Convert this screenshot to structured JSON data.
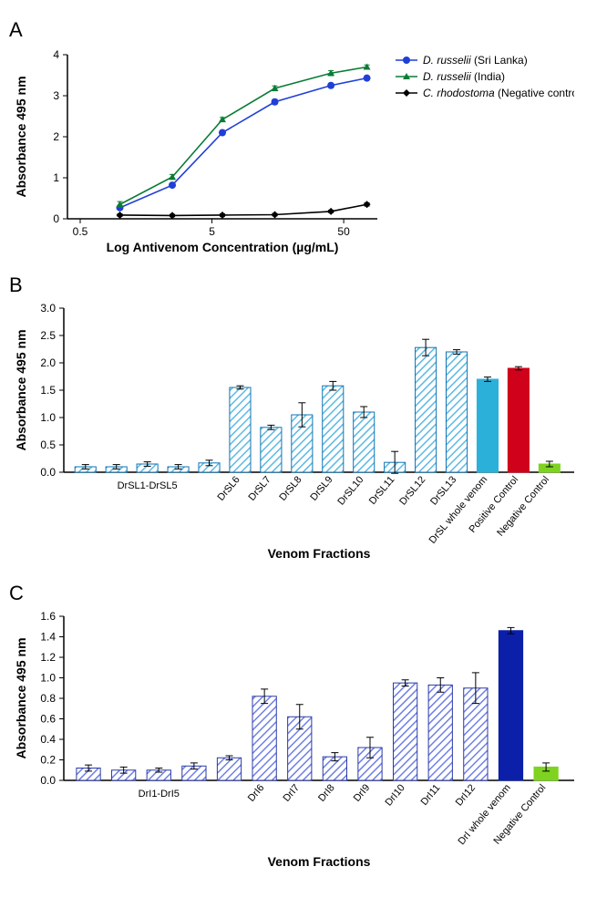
{
  "panelA": {
    "label": "A",
    "type": "line",
    "xlabel": "Log Antivenom Concentration (µg/mL)",
    "ylabel": "Absorbance 495 nm",
    "x_ticks": [
      0.5,
      5,
      50
    ],
    "x_tick_labels": [
      "0.5",
      "5",
      "50"
    ],
    "y_ticks": [
      0,
      1,
      2,
      3,
      4
    ],
    "xlim": [
      0.4,
      90
    ],
    "ylim": [
      0,
      4
    ],
    "log_x": true,
    "background_color": "#ffffff",
    "axis_color": "#000000",
    "line_width": 1.6,
    "marker_size": 4,
    "series": [
      {
        "name": "D. russelii (Sri Lanka)",
        "name_italic": "D. russelii",
        "name_paren": "(Sri Lanka)",
        "color": "#1f3fd6",
        "marker": "circle",
        "x": [
          1,
          2.5,
          6,
          15,
          40,
          75
        ],
        "y": [
          0.27,
          0.82,
          2.1,
          2.85,
          3.25,
          3.43
        ],
        "err": [
          0.05,
          0.05,
          0.05,
          0.06,
          0.05,
          0.05
        ]
      },
      {
        "name": "D. russelii (India)",
        "name_italic": "D. russelii",
        "name_paren": "(India)",
        "color": "#0a7c36",
        "marker": "triangle",
        "x": [
          1,
          2.5,
          6,
          15,
          40,
          75
        ],
        "y": [
          0.35,
          1.02,
          2.42,
          3.18,
          3.55,
          3.7
        ],
        "err": [
          0.07,
          0.06,
          0.05,
          0.06,
          0.06,
          0.05
        ]
      },
      {
        "name": "C. rhodostoma (Negative control)",
        "name_italic": "C. rhodostoma",
        "name_paren": "(Negative control)",
        "color": "#000000",
        "marker": "diamond",
        "x": [
          1,
          2.5,
          6,
          15,
          40,
          75
        ],
        "y": [
          0.09,
          0.08,
          0.09,
          0.1,
          0.18,
          0.35
        ],
        "err": [
          0.03,
          0.03,
          0.03,
          0.03,
          0.03,
          0.04
        ]
      }
    ],
    "tick_fontsize": 12,
    "label_fontsize": 14
  },
  "panelB": {
    "label": "B",
    "type": "bar",
    "xlabel": "Venom Fractions",
    "ylabel": "Absorbance 495 nm",
    "ylim": [
      0,
      3.0
    ],
    "y_ticks": [
      0.0,
      0.5,
      1.0,
      1.5,
      2.0,
      2.5,
      3.0
    ],
    "group_label": "DrSL1-DrSL5",
    "group_count": 5,
    "group_values": [
      0.1,
      0.1,
      0.15,
      0.1,
      0.17
    ],
    "group_err": [
      0.04,
      0.04,
      0.04,
      0.04,
      0.05
    ],
    "hatched_color": "#5cb9e3",
    "hatched_stroke": "#0f74b3",
    "bars": [
      {
        "label": "DrSL6",
        "value": 1.55,
        "err": 0.03,
        "fill": "hatch"
      },
      {
        "label": "DrSL7",
        "value": 0.82,
        "err": 0.04,
        "fill": "hatch"
      },
      {
        "label": "DrSL8",
        "value": 1.05,
        "err": 0.22,
        "fill": "hatch"
      },
      {
        "label": "DrSL9",
        "value": 1.58,
        "err": 0.08,
        "fill": "hatch"
      },
      {
        "label": "DrSL10",
        "value": 1.1,
        "err": 0.1,
        "fill": "hatch"
      },
      {
        "label": "DrSL11",
        "value": 0.18,
        "err": 0.2,
        "fill": "hatch"
      },
      {
        "label": "DrSL12",
        "value": 2.28,
        "err": 0.15,
        "fill": "hatch"
      },
      {
        "label": "DrSL13",
        "value": 2.2,
        "err": 0.04,
        "fill": "hatch"
      },
      {
        "label": "DrSL whole venom",
        "value": 1.7,
        "err": 0.04,
        "fill": "solid",
        "color": "#2bb0d9"
      },
      {
        "label": "Positive Control",
        "value": 1.9,
        "err": 0.03,
        "fill": "solid",
        "color": "#d0021b"
      },
      {
        "label": "Negative Control",
        "value": 0.15,
        "err": 0.05,
        "fill": "solid",
        "color": "#7ed321"
      }
    ],
    "bar_width": 0.68,
    "rotate_labels": -50,
    "background_color": "#ffffff",
    "axis_color": "#000000",
    "tick_fontsize": 11,
    "label_fontsize": 14
  },
  "panelC": {
    "label": "C",
    "type": "bar",
    "xlabel": "Venom Fractions",
    "ylabel": "Absorbance 495 nm",
    "ylim": [
      0,
      1.6
    ],
    "y_ticks": [
      0.0,
      0.2,
      0.4,
      0.6,
      0.8,
      1.0,
      1.2,
      1.4,
      1.6
    ],
    "group_label": "DrI1-DrI5",
    "group_count": 5,
    "group_values": [
      0.12,
      0.1,
      0.1,
      0.14,
      0.22
    ],
    "group_err": [
      0.03,
      0.03,
      0.02,
      0.03,
      0.02
    ],
    "hatched_color": "#6f7fe6",
    "hatched_stroke": "#2b3aa5",
    "bars": [
      {
        "label": "DrI6",
        "value": 0.82,
        "err": 0.07,
        "fill": "hatch"
      },
      {
        "label": "DrI7",
        "value": 0.62,
        "err": 0.12,
        "fill": "hatch"
      },
      {
        "label": "DrI8",
        "value": 0.23,
        "err": 0.04,
        "fill": "hatch"
      },
      {
        "label": "DrI9",
        "value": 0.32,
        "err": 0.1,
        "fill": "hatch"
      },
      {
        "label": "DrI10",
        "value": 0.95,
        "err": 0.03,
        "fill": "hatch"
      },
      {
        "label": "DrI11",
        "value": 0.93,
        "err": 0.07,
        "fill": "hatch"
      },
      {
        "label": "DrI12",
        "value": 0.9,
        "err": 0.15,
        "fill": "hatch"
      },
      {
        "label": "DrI whole venom",
        "value": 1.46,
        "err": 0.03,
        "fill": "solid",
        "color": "#0b1fa8"
      },
      {
        "label": "Negative Control",
        "value": 0.13,
        "err": 0.04,
        "fill": "solid",
        "color": "#7ed321"
      }
    ],
    "bar_width": 0.68,
    "rotate_labels": -50,
    "background_color": "#ffffff",
    "axis_color": "#000000",
    "tick_fontsize": 11,
    "label_fontsize": 14
  }
}
